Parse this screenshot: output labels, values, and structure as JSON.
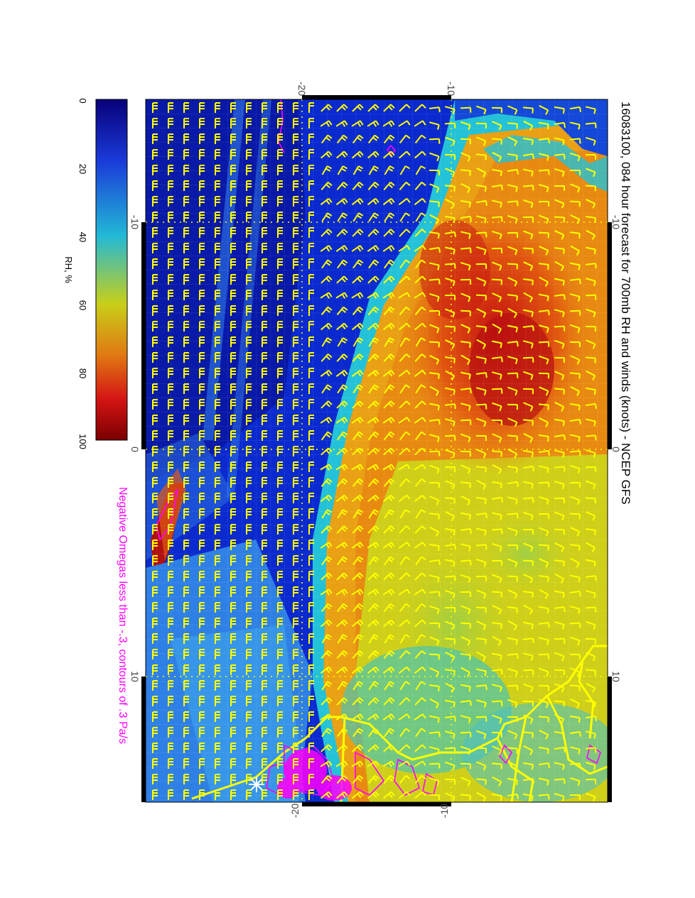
{
  "title": "16083100, 084 hour forecast for 700mb RH and winds (knots) - NCEP GFS",
  "subtitle": "Negative Omegas less than -.3, contours of .3 Pa/s",
  "colors": {
    "title": "#000000",
    "subtitle": "#ff00ff",
    "wind_barb": "#ffff00",
    "coastline": "#ffff00",
    "omega_contour": "#ff00ff"
  },
  "colorbar": {
    "label": "RH, %",
    "ticks": [
      "0",
      "20",
      "40",
      "60",
      "80",
      "100"
    ],
    "stops": [
      "#08007a",
      "#1a3ad8",
      "#22b9d6",
      "#c8cf1a",
      "#e07a12",
      "#d41414",
      "#7a0000"
    ]
  },
  "axes": {
    "top_ticks": [
      "-20",
      "-10"
    ],
    "bottom_ticks": [
      "-20",
      "-10"
    ],
    "left_ticks": [
      "-10",
      "0",
      "10"
    ],
    "right_ticks": [
      "-10",
      "0",
      "10"
    ]
  }
}
